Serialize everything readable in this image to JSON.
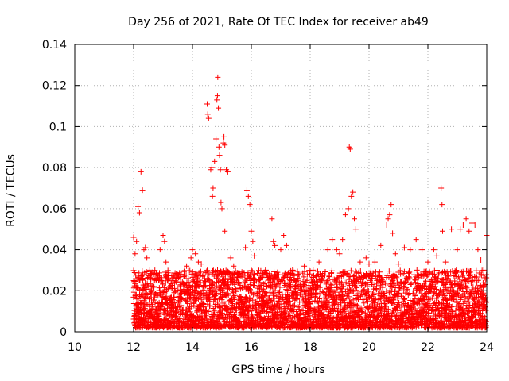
{
  "chart_data": {
    "type": "scatter",
    "title": "Day 256 of 2021, Rate Of TEC Index for receiver ab49",
    "xlabel": "GPS time / hours",
    "ylabel": "ROTI / TECUs",
    "xlim": [
      10,
      24
    ],
    "ylim": [
      0,
      0.14
    ],
    "xticks": [
      10,
      12,
      14,
      16,
      18,
      20,
      22,
      24
    ],
    "xtick_labels": [
      "10",
      "12",
      "14",
      "16",
      "18",
      "20",
      "22",
      "24"
    ],
    "yticks": [
      0,
      0.02,
      0.04,
      0.06,
      0.08,
      0.1,
      0.12,
      0.14
    ],
    "ytick_labels": [
      "0",
      "0.02",
      "0.04",
      "0.06",
      "0.08",
      "0.1",
      "0.12",
      "0.14"
    ],
    "grid": true,
    "marker": "plus",
    "color": "#ff0000",
    "series": [
      {
        "name": "ab49",
        "points": [
          [
            12.0,
            0.046
          ],
          [
            12.05,
            0.038
          ],
          [
            12.1,
            0.044
          ],
          [
            12.15,
            0.061
          ],
          [
            12.2,
            0.058
          ],
          [
            12.25,
            0.078
          ],
          [
            12.3,
            0.069
          ],
          [
            12.35,
            0.04
          ],
          [
            12.4,
            0.041
          ],
          [
            12.45,
            0.036
          ],
          [
            12.55,
            0.03
          ],
          [
            12.7,
            0.028
          ],
          [
            12.9,
            0.04
          ],
          [
            13.0,
            0.047
          ],
          [
            13.05,
            0.044
          ],
          [
            13.1,
            0.034
          ],
          [
            13.3,
            0.025
          ],
          [
            13.6,
            0.028
          ],
          [
            13.8,
            0.032
          ],
          [
            13.95,
            0.036
          ],
          [
            14.0,
            0.04
          ],
          [
            14.1,
            0.038
          ],
          [
            14.2,
            0.034
          ],
          [
            14.3,
            0.033
          ],
          [
            14.5,
            0.111
          ],
          [
            14.52,
            0.106
          ],
          [
            14.55,
            0.104
          ],
          [
            14.62,
            0.079
          ],
          [
            14.66,
            0.08
          ],
          [
            14.68,
            0.066
          ],
          [
            14.7,
            0.07
          ],
          [
            14.75,
            0.083
          ],
          [
            14.8,
            0.094
          ],
          [
            14.83,
            0.113
          ],
          [
            14.85,
            0.115
          ],
          [
            14.86,
            0.124
          ],
          [
            14.88,
            0.109
          ],
          [
            14.9,
            0.09
          ],
          [
            14.92,
            0.086
          ],
          [
            14.95,
            0.079
          ],
          [
            14.97,
            0.063
          ],
          [
            15.0,
            0.06
          ],
          [
            15.05,
            0.092
          ],
          [
            15.07,
            0.095
          ],
          [
            15.1,
            0.091
          ],
          [
            15.15,
            0.079
          ],
          [
            15.2,
            0.078
          ],
          [
            15.1,
            0.049
          ],
          [
            15.3,
            0.036
          ],
          [
            15.4,
            0.032
          ],
          [
            15.8,
            0.041
          ],
          [
            15.85,
            0.069
          ],
          [
            15.9,
            0.066
          ],
          [
            15.95,
            0.062
          ],
          [
            16.0,
            0.049
          ],
          [
            16.05,
            0.044
          ],
          [
            16.1,
            0.037
          ],
          [
            16.5,
            0.03
          ],
          [
            16.7,
            0.055
          ],
          [
            16.75,
            0.044
          ],
          [
            16.8,
            0.042
          ],
          [
            17.0,
            0.04
          ],
          [
            17.1,
            0.047
          ],
          [
            17.2,
            0.042
          ],
          [
            17.4,
            0.03
          ],
          [
            17.6,
            0.028
          ],
          [
            17.8,
            0.032
          ],
          [
            18.1,
            0.03
          ],
          [
            18.3,
            0.034
          ],
          [
            18.6,
            0.04
          ],
          [
            18.75,
            0.045
          ],
          [
            18.9,
            0.04
          ],
          [
            19.0,
            0.038
          ],
          [
            19.1,
            0.045
          ],
          [
            19.2,
            0.057
          ],
          [
            19.3,
            0.06
          ],
          [
            19.33,
            0.09
          ],
          [
            19.36,
            0.089
          ],
          [
            19.4,
            0.066
          ],
          [
            19.45,
            0.068
          ],
          [
            19.5,
            0.055
          ],
          [
            19.55,
            0.05
          ],
          [
            19.7,
            0.034
          ],
          [
            19.9,
            0.036
          ],
          [
            20.0,
            0.033
          ],
          [
            20.2,
            0.034
          ],
          [
            20.4,
            0.042
          ],
          [
            20.6,
            0.052
          ],
          [
            20.65,
            0.055
          ],
          [
            20.7,
            0.057
          ],
          [
            20.75,
            0.062
          ],
          [
            20.8,
            0.048
          ],
          [
            20.9,
            0.038
          ],
          [
            21.0,
            0.033
          ],
          [
            21.2,
            0.041
          ],
          [
            21.4,
            0.04
          ],
          [
            21.6,
            0.045
          ],
          [
            21.8,
            0.04
          ],
          [
            22.0,
            0.034
          ],
          [
            22.2,
            0.04
          ],
          [
            22.3,
            0.037
          ],
          [
            22.45,
            0.07
          ],
          [
            22.48,
            0.062
          ],
          [
            22.5,
            0.049
          ],
          [
            22.6,
            0.034
          ],
          [
            22.8,
            0.05
          ],
          [
            23.0,
            0.04
          ],
          [
            23.1,
            0.05
          ],
          [
            23.2,
            0.052
          ],
          [
            23.3,
            0.055
          ],
          [
            23.4,
            0.049
          ],
          [
            23.5,
            0.053
          ],
          [
            23.6,
            0.052
          ],
          [
            23.7,
            0.04
          ],
          [
            23.8,
            0.035
          ],
          [
            23.9,
            0.03
          ],
          [
            24.0,
            0.047
          ]
        ],
        "dense_band": {
          "x_range": [
            12.0,
            24.0
          ],
          "y_range": [
            0.002,
            0.03
          ],
          "description": "continuous dense band of points"
        }
      }
    ]
  }
}
